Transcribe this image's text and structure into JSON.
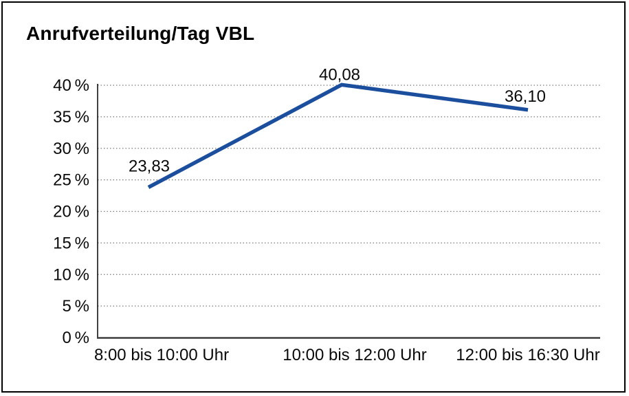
{
  "chart_data": {
    "type": "line",
    "title": "Anrufverteilung/Tag VBL",
    "categories": [
      "8:00 bis 10:00 Uhr",
      "10:00 bis 12:00 Uhr",
      "12:00 bis 16:30 Uhr"
    ],
    "values": [
      23.83,
      40.08,
      36.1
    ],
    "value_labels": [
      "23,83",
      "40,08",
      "36,10"
    ],
    "y_ticks": [
      0,
      5,
      10,
      15,
      20,
      25,
      30,
      35,
      40
    ],
    "y_tick_labels": [
      "0 %",
      "5 %",
      "10 %",
      "15 %",
      "20 %",
      "25 %",
      "30 %",
      "35 %",
      "40 %"
    ],
    "ylim": [
      0,
      40
    ],
    "xlabel": "",
    "ylabel": "",
    "grid": "horizontal-dotted",
    "legend": "none",
    "colors": {
      "line": "#1b4f9e",
      "gridline": "#7a7a7a",
      "axis_left": "#000000",
      "axis_bottom": "#3d3d3d",
      "text": "#0a0a0a",
      "frame": "#000000"
    }
  }
}
